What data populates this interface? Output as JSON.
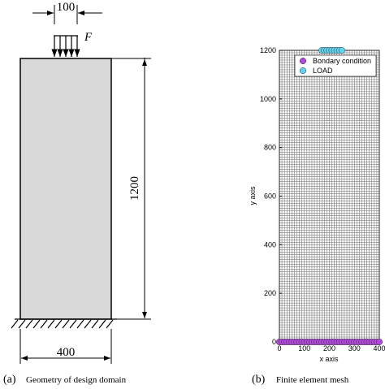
{
  "geometry": {
    "label": "(a)",
    "caption": "Geometry of design domain",
    "load": "F",
    "dimensions": {
      "top": "100",
      "right": "1200",
      "bottom": "400"
    }
  },
  "chart_data": {
    "type": "scatter",
    "label": "(b)",
    "caption": "Finite element mesh",
    "xlabel": "x axis",
    "ylabel": "y axis",
    "xlim": [
      0,
      400
    ],
    "ylim": [
      0,
      1200
    ],
    "xticks": [
      0,
      100,
      200,
      300,
      400
    ],
    "yticks": [
      0,
      200,
      400,
      600,
      800,
      1000,
      1200
    ],
    "element_size": 10,
    "legend": "upper right",
    "series": [
      {
        "name": "Bondary condition",
        "color": "#b347e0",
        "x": [
          0,
          10,
          20,
          30,
          40,
          50,
          60,
          70,
          80,
          90,
          100,
          110,
          120,
          130,
          140,
          150,
          160,
          170,
          180,
          190,
          200,
          210,
          220,
          230,
          240,
          250,
          260,
          270,
          280,
          290,
          300,
          310,
          320,
          330,
          340,
          350,
          360,
          370,
          380,
          390,
          400
        ],
        "y": [
          0,
          0,
          0,
          0,
          0,
          0,
          0,
          0,
          0,
          0,
          0,
          0,
          0,
          0,
          0,
          0,
          0,
          0,
          0,
          0,
          0,
          0,
          0,
          0,
          0,
          0,
          0,
          0,
          0,
          0,
          0,
          0,
          0,
          0,
          0,
          0,
          0,
          0,
          0,
          0,
          0
        ]
      },
      {
        "name": "LOAD",
        "color": "#5fd3ef",
        "x": [
          170,
          180,
          190,
          200,
          210,
          220,
          230,
          240,
          250
        ],
        "y": [
          1200,
          1200,
          1200,
          1200,
          1200,
          1200,
          1200,
          1200,
          1200
        ]
      }
    ]
  }
}
